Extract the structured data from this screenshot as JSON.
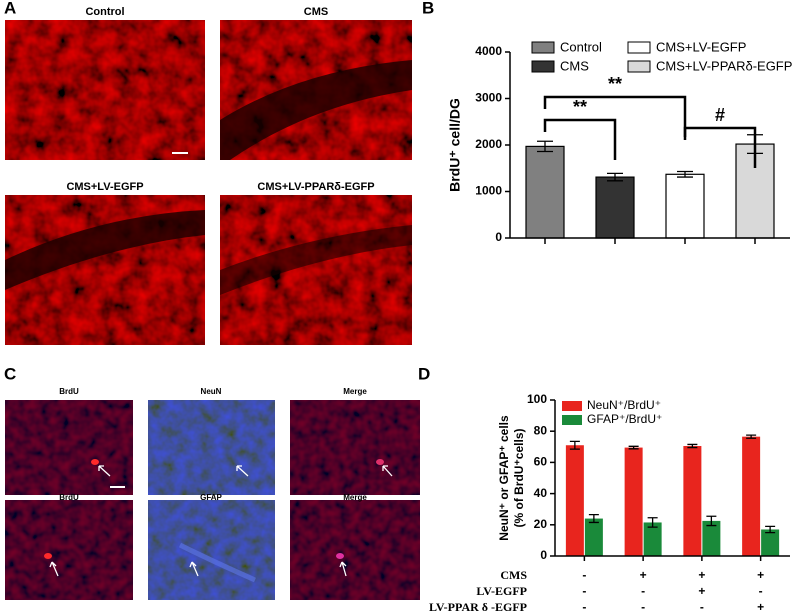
{
  "figure": {
    "panels": [
      "A",
      "B",
      "C",
      "D"
    ],
    "images_a": [
      "Control",
      "CMS",
      "CMS+LV-EGFP",
      "CMS+LV-PPARδ-EGFP"
    ],
    "images_c": [
      "BrdU",
      "NeuN",
      "Merge",
      "BrdU",
      "GFAP",
      "Merge"
    ]
  },
  "chart_data": [
    {
      "type": "bar",
      "ylabel": "BrdU⁺ cell/DG",
      "categories": [
        "Control",
        "CMS",
        "CMS+LV-EGFP",
        "CMS+LV-PPARδ-EGFP"
      ],
      "values": [
        1970,
        1310,
        1370,
        2020
      ],
      "errors": [
        110,
        80,
        60,
        200
      ],
      "colors": [
        "#808080",
        "#333333",
        "#ffffff",
        "#d9d9d9"
      ],
      "ylim": [
        0,
        4000
      ],
      "yticks": [
        0,
        1000,
        2000,
        3000,
        4000
      ],
      "annotations": [
        "**",
        "**",
        "#"
      ]
    },
    {
      "type": "grouped_bar",
      "ylabel": [
        "NeuN⁺ or GFAP⁺ cells",
        "(% of BrdU⁺cells)"
      ],
      "categories": [
        null,
        null,
        null,
        null
      ],
      "series": [
        {
          "name": "NeuN⁺/BrdU⁺",
          "color": "#e8251e",
          "values": [
            71,
            69.5,
            70.5,
            76.5
          ],
          "errors": [
            2.5,
            0.8,
            1,
            1
          ]
        },
        {
          "name": "GFAP⁺/BrdU⁺",
          "color": "#1a8a3a",
          "values": [
            24,
            21.5,
            22.5,
            17
          ],
          "errors": [
            2.5,
            3,
            3,
            2
          ]
        }
      ],
      "ylim": [
        0,
        100
      ],
      "yticks": [
        0,
        20,
        40,
        60,
        80,
        100
      ],
      "conditions": [
        {
          "label": "CMS",
          "marks": [
            "-",
            "+",
            "+",
            "+"
          ]
        },
        {
          "label": "LV-EGFP",
          "marks": [
            "-",
            "-",
            "+",
            "-"
          ]
        },
        {
          "label": "LV-PPAR δ -EGFP",
          "marks": [
            "-",
            "-",
            "-",
            "+"
          ]
        }
      ]
    }
  ]
}
